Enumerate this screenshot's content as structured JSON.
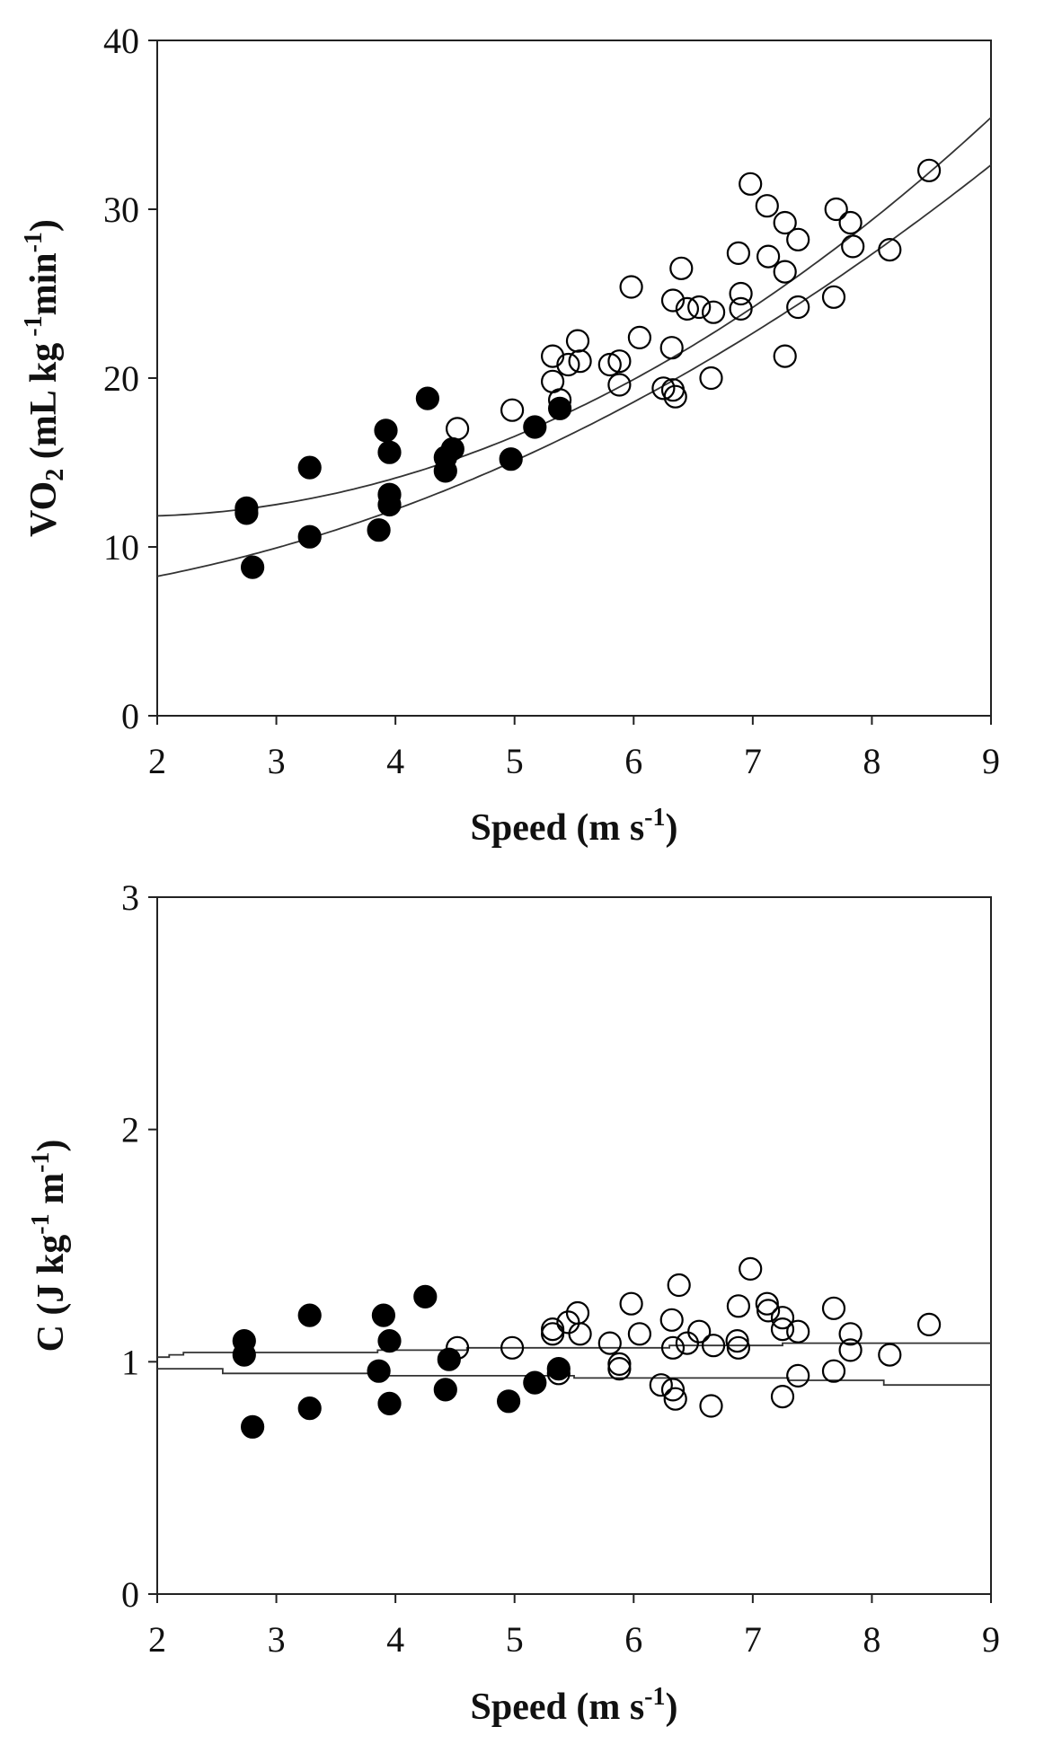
{
  "chart_data": [
    {
      "type": "scatter",
      "title": "",
      "xlabel": "Speed (m s",
      "xlabel_sup": "-1",
      "xlabel_end": ")",
      "ylabel_prefix": "VO",
      "ylabel_sub": "2",
      "ylabel_main": " (mL kg",
      "ylabel_sup1": " -1",
      "ylabel_mid": "min",
      "ylabel_sup2": "-1",
      "ylabel_end": ")",
      "xlim": [
        2,
        9
      ],
      "ylim": [
        0,
        40
      ],
      "xticks": [
        "2",
        "3",
        "4",
        "5",
        "6",
        "7",
        "8",
        "9"
      ],
      "yticks": [
        "0",
        "10",
        "20",
        "30",
        "40"
      ],
      "series": [
        {
          "name": "filled",
          "marker": "filled-circle",
          "points": [
            [
              2.75,
              12.3
            ],
            [
              2.75,
              12.0
            ],
            [
              2.8,
              8.8
            ],
            [
              3.28,
              14.7
            ],
            [
              3.28,
              10.6
            ],
            [
              3.86,
              11.0
            ],
            [
              3.92,
              16.9
            ],
            [
              3.95,
              15.6
            ],
            [
              3.95,
              13.1
            ],
            [
              3.95,
              12.5
            ],
            [
              4.27,
              18.8
            ],
            [
              4.42,
              14.5
            ],
            [
              4.42,
              15.3
            ],
            [
              4.48,
              15.8
            ],
            [
              4.97,
              15.2
            ],
            [
              5.17,
              17.1
            ],
            [
              5.38,
              18.2
            ]
          ]
        },
        {
          "name": "open",
          "marker": "open-circle",
          "points": [
            [
              4.52,
              17.0
            ],
            [
              4.98,
              18.1
            ],
            [
              5.32,
              21.3
            ],
            [
              5.32,
              19.8
            ],
            [
              5.38,
              18.7
            ],
            [
              5.45,
              20.8
            ],
            [
              5.53,
              22.2
            ],
            [
              5.55,
              21.0
            ],
            [
              5.8,
              20.8
            ],
            [
              5.88,
              19.6
            ],
            [
              5.88,
              21.0
            ],
            [
              5.98,
              25.4
            ],
            [
              6.05,
              22.4
            ],
            [
              6.25,
              19.4
            ],
            [
              6.32,
              21.8
            ],
            [
              6.33,
              19.3
            ],
            [
              6.35,
              18.9
            ],
            [
              6.33,
              24.6
            ],
            [
              6.4,
              26.5
            ],
            [
              6.45,
              24.1
            ],
            [
              6.55,
              24.2
            ],
            [
              6.65,
              20.0
            ],
            [
              6.67,
              23.9
            ],
            [
              6.88,
              27.4
            ],
            [
              6.9,
              25.0
            ],
            [
              6.9,
              24.1
            ],
            [
              6.98,
              31.5
            ],
            [
              7.12,
              30.2
            ],
            [
              7.13,
              27.2
            ],
            [
              7.27,
              29.2
            ],
            [
              7.27,
              26.3
            ],
            [
              7.27,
              21.3
            ],
            [
              7.38,
              28.2
            ],
            [
              7.38,
              24.2
            ],
            [
              7.68,
              24.8
            ],
            [
              7.7,
              30.0
            ],
            [
              7.82,
              29.2
            ],
            [
              7.84,
              27.8
            ],
            [
              8.15,
              27.6
            ],
            [
              8.48,
              32.3
            ]
          ]
        }
      ],
      "curves": [
        {
          "name": "upper fit",
          "coef": [
            13.2,
            -1.58,
            0.45
          ]
        },
        {
          "name": "lower fit",
          "coef": [
            6.7,
            0.18,
            0.3
          ]
        }
      ]
    },
    {
      "type": "scatter",
      "title": "",
      "xlabel": "Speed (m s",
      "xlabel_sup": "-1",
      "xlabel_end": ")",
      "ylabel_prefix": "C (J kg",
      "ylabel_sup1": "-1",
      "ylabel_mid": " m",
      "ylabel_sup2": "-1",
      "ylabel_end": ")",
      "xlim": [
        2,
        9
      ],
      "ylim": [
        0,
        3
      ],
      "xticks": [
        "2",
        "3",
        "4",
        "5",
        "6",
        "7",
        "8",
        "9"
      ],
      "yticks": [
        "0",
        "1",
        "2",
        "3"
      ],
      "series": [
        {
          "name": "filled",
          "marker": "filled-circle",
          "points": [
            [
              2.73,
              1.09
            ],
            [
              2.73,
              1.03
            ],
            [
              2.8,
              0.72
            ],
            [
              3.28,
              1.2
            ],
            [
              3.28,
              0.8
            ],
            [
              3.86,
              0.96
            ],
            [
              3.9,
              1.2
            ],
            [
              3.95,
              1.09
            ],
            [
              3.95,
              0.82
            ],
            [
              4.25,
              1.28
            ],
            [
              4.42,
              0.88
            ],
            [
              4.45,
              1.01
            ],
            [
              4.95,
              0.83
            ],
            [
              5.17,
              0.91
            ],
            [
              5.37,
              0.97
            ]
          ]
        },
        {
          "name": "open",
          "marker": "open-circle",
          "points": [
            [
              4.52,
              1.06
            ],
            [
              4.98,
              1.06
            ],
            [
              5.32,
              1.14
            ],
            [
              5.32,
              1.12
            ],
            [
              5.37,
              0.95
            ],
            [
              5.45,
              1.17
            ],
            [
              5.53,
              1.21
            ],
            [
              5.55,
              1.12
            ],
            [
              5.8,
              1.08
            ],
            [
              5.88,
              0.97
            ],
            [
              5.88,
              0.99
            ],
            [
              5.98,
              1.25
            ],
            [
              6.05,
              1.12
            ],
            [
              6.23,
              0.9
            ],
            [
              6.32,
              1.18
            ],
            [
              6.33,
              1.06
            ],
            [
              6.33,
              0.88
            ],
            [
              6.35,
              0.84
            ],
            [
              6.38,
              1.33
            ],
            [
              6.45,
              1.08
            ],
            [
              6.55,
              1.13
            ],
            [
              6.65,
              0.81
            ],
            [
              6.67,
              1.07
            ],
            [
              6.87,
              1.09
            ],
            [
              6.88,
              1.24
            ],
            [
              6.88,
              1.06
            ],
            [
              6.98,
              1.4
            ],
            [
              7.12,
              1.25
            ],
            [
              7.13,
              1.22
            ],
            [
              7.25,
              1.19
            ],
            [
              7.25,
              1.14
            ],
            [
              7.25,
              0.85
            ],
            [
              7.38,
              1.13
            ],
            [
              7.38,
              0.94
            ],
            [
              7.68,
              1.23
            ],
            [
              7.68,
              0.96
            ],
            [
              7.82,
              1.12
            ],
            [
              7.82,
              1.05
            ],
            [
              8.15,
              1.03
            ],
            [
              8.48,
              1.16
            ]
          ]
        }
      ],
      "steps": [
        {
          "name": "upper band",
          "points": [
            [
              2.0,
              1.02
            ],
            [
              2.1,
              1.03
            ],
            [
              2.22,
              1.04
            ],
            [
              3.0,
              1.04
            ],
            [
              3.85,
              1.05
            ],
            [
              4.6,
              1.06
            ],
            [
              6.3,
              1.07
            ],
            [
              7.25,
              1.08
            ],
            [
              9.0,
              1.08
            ]
          ]
        },
        {
          "name": "lower band",
          "points": [
            [
              2.0,
              0.97
            ],
            [
              2.55,
              0.95
            ],
            [
              3.85,
              0.94
            ],
            [
              5.5,
              0.93
            ],
            [
              7.3,
              0.92
            ],
            [
              8.1,
              0.9
            ],
            [
              9.0,
              0.9
            ]
          ]
        }
      ]
    }
  ]
}
